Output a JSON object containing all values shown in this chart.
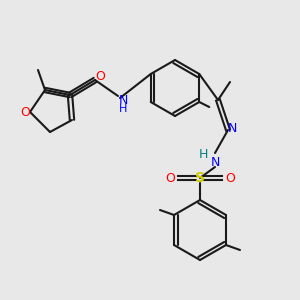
{
  "bg_color": "#e8e8e8",
  "bond_color": "#1a1a1a",
  "atom_colors": {
    "O": "#ff0000",
    "N": "#0000ff",
    "S": "#cccc00",
    "H_teal": "#008080",
    "C": "#1a1a1a"
  },
  "lw": 1.5,
  "lw2": 3.0
}
